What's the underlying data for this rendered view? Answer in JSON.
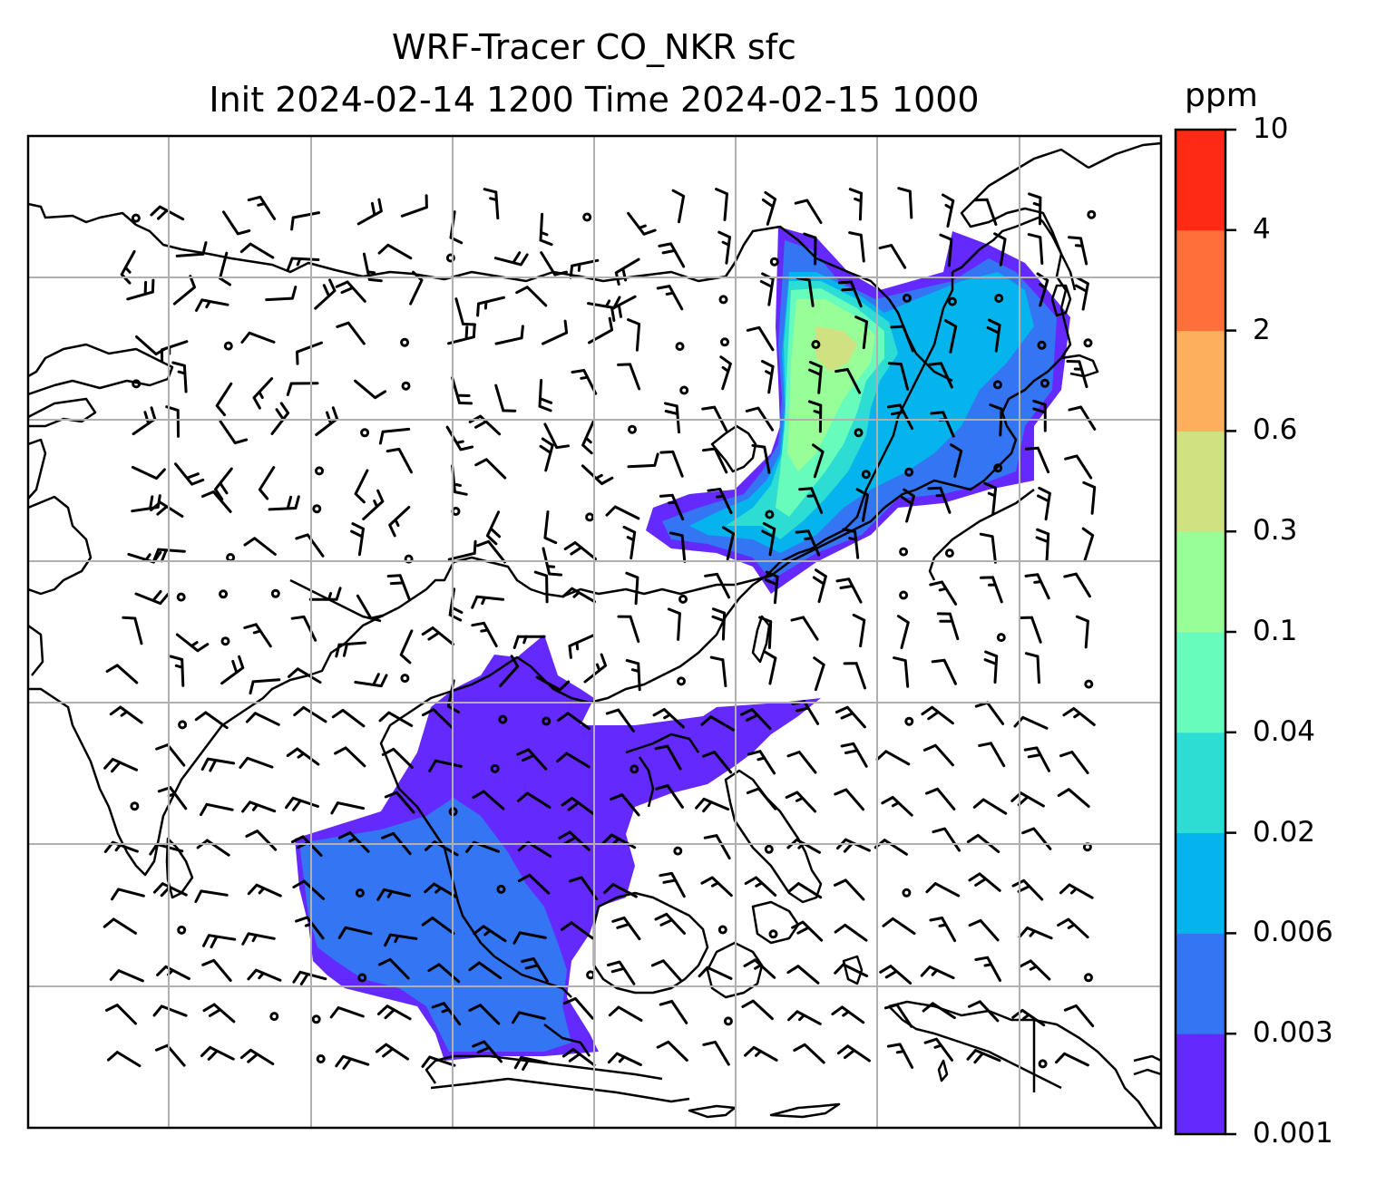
{
  "title": {
    "line1": "WRF-Tracer CO_NKR sfc",
    "line2": "Init 2024-02-14 1200 Time 2024-02-15 1000"
  },
  "colorbar": {
    "unit": "ppm",
    "levels": [
      "0.001",
      "0.003",
      "0.006",
      "0.02",
      "0.04",
      "0.1",
      "0.3",
      "0.6",
      "2",
      "4",
      "10"
    ],
    "colors": [
      "#6429fc",
      "#3475f4",
      "#05b4ec",
      "#2ddcd2",
      "#67fbbc",
      "#98fe97",
      "#d0e182",
      "#feaf5e",
      "#fe6f3a",
      "#fe2a16"
    ]
  },
  "map": {
    "type": "filled-contour with wind barbs",
    "field": "CO_NKR surface tracer concentration",
    "gridlines": true,
    "coastlines": true,
    "region": "East / Southeast Asia"
  }
}
